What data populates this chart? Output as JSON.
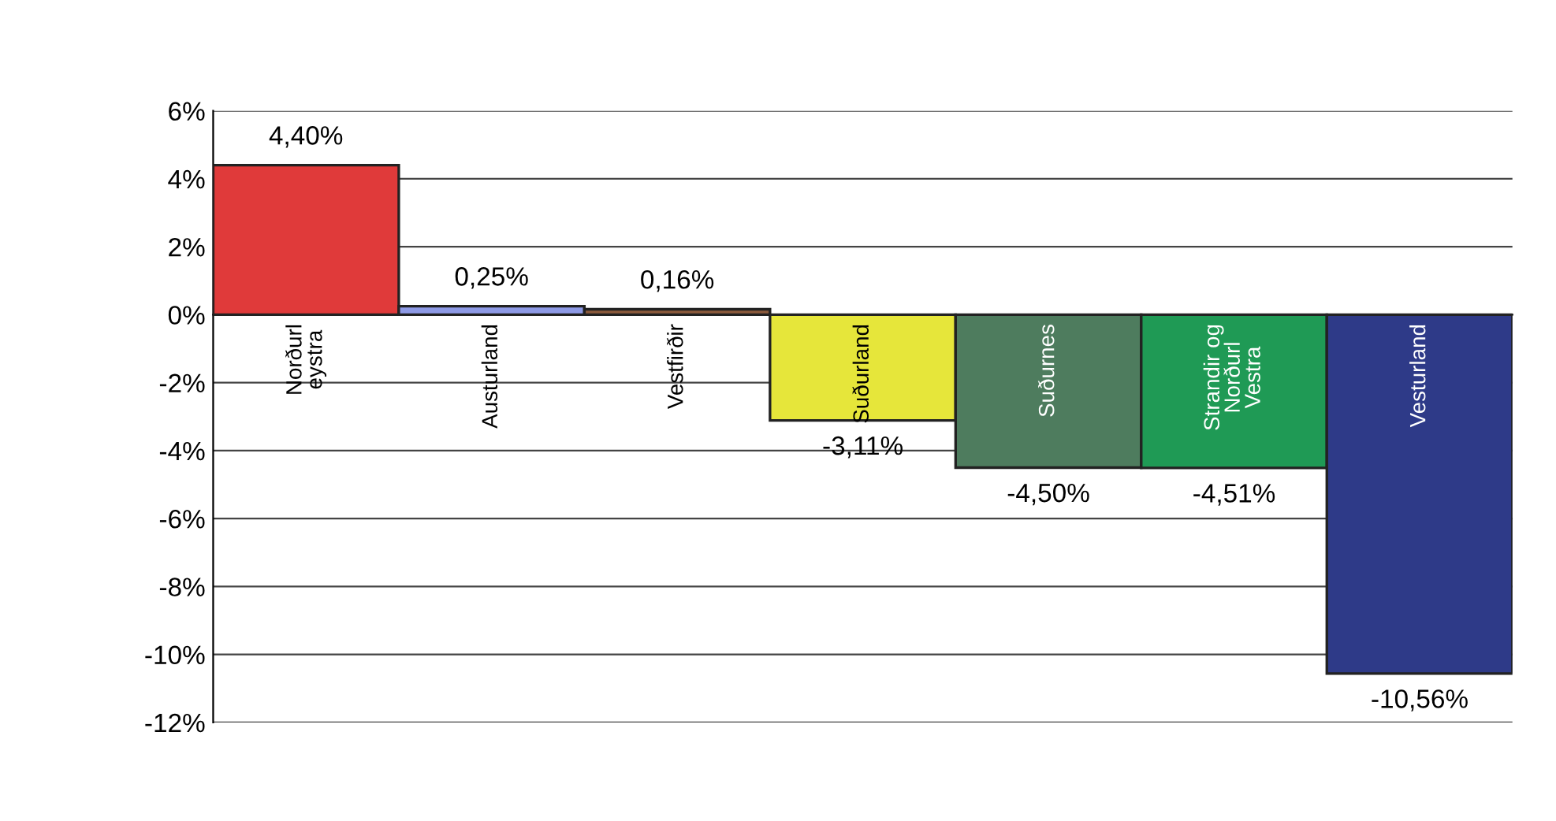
{
  "chart_data": {
    "type": "bar",
    "categories": [
      "Norðurl eystra",
      "Austurland",
      "Vestfirðir",
      "Suðurland",
      "Suðurnes",
      "Strandir og Norðurl Vestra",
      "Vesturland"
    ],
    "values": [
      4.4,
      0.25,
      0.16,
      -3.11,
      -4.5,
      -4.51,
      -10.56
    ],
    "value_labels": [
      "4,40%",
      "0,25%",
      "0,16%",
      "-3,11%",
      "-4,50%",
      "-4,51%",
      "-10,56%"
    ],
    "colors": [
      "#e03a3a",
      "#8e9ae6",
      "#8b5a3c",
      "#e6e63a",
      "#4e7c5e",
      "#1f9a55",
      "#2e3a88"
    ],
    "ylim": [
      -12,
      6
    ],
    "yticks": [
      {
        "value": -12,
        "label": "-12%"
      },
      {
        "value": -10,
        "label": "-10%"
      },
      {
        "value": -8,
        "label": "-8%"
      },
      {
        "value": -6,
        "label": "-6%"
      },
      {
        "value": -4,
        "label": "-4%"
      },
      {
        "value": -2,
        "label": "-2%"
      },
      {
        "value": 0,
        "label": "0%"
      },
      {
        "value": 2,
        "label": "2%"
      },
      {
        "value": 4,
        "label": "4%"
      },
      {
        "value": 6,
        "label": "6%"
      }
    ],
    "grid": "y"
  }
}
